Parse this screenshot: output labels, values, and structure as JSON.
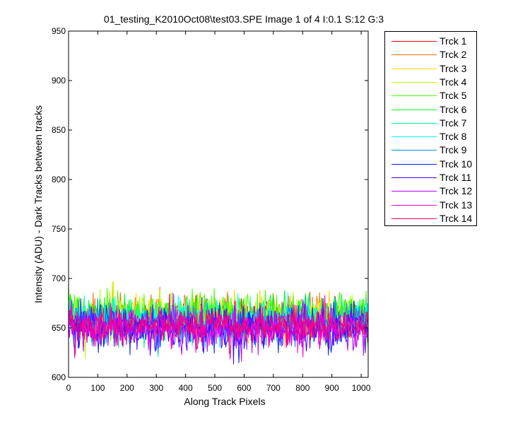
{
  "chart_data": {
    "type": "line",
    "title": "01_testing_K2010Oct08\\test03.SPE  Image 1 of 4  I:0.1  S:12  G:3",
    "xlabel": "Along Track Pixels",
    "ylabel": "Intensity (ADU) - Dark Tracks between tracks",
    "xlim": [
      0,
      1024
    ],
    "ylim": [
      600,
      950
    ],
    "xticks": [
      0,
      100,
      200,
      300,
      400,
      500,
      600,
      700,
      800,
      900,
      1000
    ],
    "yticks": [
      600,
      650,
      700,
      750,
      800,
      850,
      900,
      950
    ],
    "grid": false,
    "legend_position": "outside-top-right",
    "noise_description": "each track is noisy around ~650 ADU, spanning roughly 615 to 697",
    "series": [
      {
        "name": "Trck 1",
        "color": "#ff0000",
        "mean": 658,
        "spread": 10
      },
      {
        "name": "Trck 2",
        "color": "#ff6d00",
        "mean": 661,
        "spread": 11
      },
      {
        "name": "Trck 3",
        "color": "#ffda00",
        "mean": 662,
        "spread": 11
      },
      {
        "name": "Trck 4",
        "color": "#b6ff00",
        "mean": 663,
        "spread": 11
      },
      {
        "name": "Trck 5",
        "color": "#48ff00",
        "mean": 664,
        "spread": 11
      },
      {
        "name": "Trck 6",
        "color": "#00ff24",
        "mean": 662,
        "spread": 10
      },
      {
        "name": "Trck 7",
        "color": "#00ff91",
        "mean": 658,
        "spread": 10
      },
      {
        "name": "Trck 8",
        "color": "#00ffff",
        "mean": 656,
        "spread": 10
      },
      {
        "name": "Trck 9",
        "color": "#0091ff",
        "mean": 654,
        "spread": 10
      },
      {
        "name": "Trck 10",
        "color": "#0024ff",
        "mean": 651,
        "spread": 11
      },
      {
        "name": "Trck 11",
        "color": "#4800ff",
        "mean": 650,
        "spread": 11
      },
      {
        "name": "Trck 12",
        "color": "#b600ff",
        "mean": 649,
        "spread": 11
      },
      {
        "name": "Trck 13",
        "color": "#ff00da",
        "mean": 650,
        "spread": 10
      },
      {
        "name": "Trck 14",
        "color": "#ff006d",
        "mean": 652,
        "spread": 9
      }
    ]
  }
}
